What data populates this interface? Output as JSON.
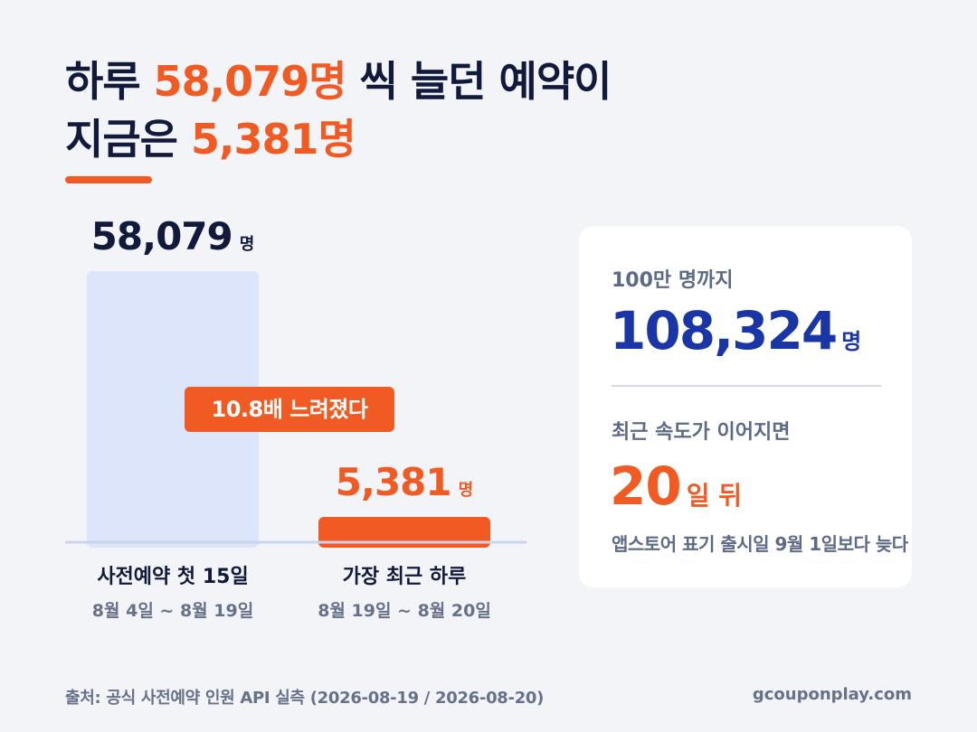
{
  "headline": {
    "line1_prefix": "하루 ",
    "line1_accent": "58,079명",
    "line1_suffix": " 씩 늘던 예약이",
    "line2_prefix": "지금은 ",
    "line2_accent": "5,381명"
  },
  "colors": {
    "accent": "#f15a22",
    "navy": "#111a3a",
    "blue": "#1a35a6",
    "bar_light": "#dde5fb",
    "muted": "#66718a"
  },
  "chart_data": {
    "type": "bar",
    "categories": [
      "사전예약 첫 15일",
      "가장 최근 하루"
    ],
    "date_ranges": [
      "8월 4일 ~ 8월 19일",
      "8월 19일 ~ 8월 20일"
    ],
    "values": [
      58079,
      5381
    ],
    "value_labels": [
      "58,079",
      "5,381"
    ],
    "unit": "명",
    "badge": "10.8배 느려졌다"
  },
  "card": {
    "label1": "100만 명까지",
    "value1": "108,324",
    "unit1": "명",
    "label2": "최근 속도가 이어지면",
    "value2": "20",
    "unit2": "일 뒤",
    "note": "앱스토어 표기 출시일 9월 1일보다 늦다"
  },
  "footer": {
    "source": "출처: 공식 사전예약 인원 API 실측 (2026-08-19 / 2026-08-20)",
    "site": "gcouponplay.com"
  }
}
